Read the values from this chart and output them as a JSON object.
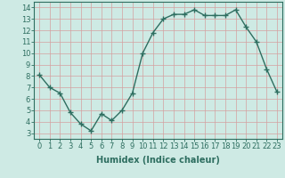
{
  "x": [
    0,
    1,
    2,
    3,
    4,
    5,
    6,
    7,
    8,
    9,
    10,
    11,
    12,
    13,
    14,
    15,
    16,
    17,
    18,
    19,
    20,
    21,
    22,
    23
  ],
  "y": [
    8.1,
    7.0,
    6.5,
    4.8,
    3.8,
    3.2,
    4.7,
    4.1,
    5.0,
    6.5,
    10.0,
    11.8,
    13.0,
    13.4,
    13.4,
    13.8,
    13.3,
    13.3,
    13.3,
    13.8,
    12.3,
    11.0,
    8.6,
    6.6
  ],
  "line_color": "#2d7d6e",
  "marker": "+",
  "marker_size": 4,
  "linewidth": 1.0,
  "xlabel": "Humidex (Indice chaleur)",
  "xlim": [
    -0.5,
    23.5
  ],
  "ylim": [
    2.5,
    14.5
  ],
  "yticks": [
    3,
    4,
    5,
    6,
    7,
    8,
    9,
    10,
    11,
    12,
    13,
    14
  ],
  "xticks": [
    0,
    1,
    2,
    3,
    4,
    5,
    6,
    7,
    8,
    9,
    10,
    11,
    12,
    13,
    14,
    15,
    16,
    17,
    18,
    19,
    20,
    21,
    22,
    23
  ],
  "xtick_labels": [
    "0",
    "1",
    "2",
    "3",
    "4",
    "5",
    "6",
    "7",
    "8",
    "9",
    "10",
    "11",
    "12",
    "13",
    "14",
    "15",
    "16",
    "17",
    "18",
    "19",
    "20",
    "21",
    "22",
    "23"
  ],
  "bg_color": "#ceeae4",
  "grid_color": "#b8d8d2",
  "line_color2": "#2e6e60",
  "tick_color": "#2e6e60",
  "label_color": "#2e6e60",
  "xlabel_fontsize": 7,
  "tick_fontsize": 6
}
